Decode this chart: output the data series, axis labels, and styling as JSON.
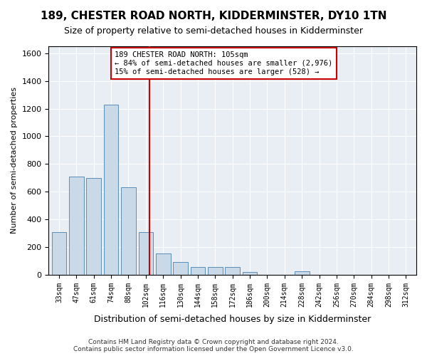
{
  "title": "189, CHESTER ROAD NORTH, KIDDERMINSTER, DY10 1TN",
  "subtitle": "Size of property relative to semi-detached houses in Kidderminster",
  "xlabel": "Distribution of semi-detached houses by size in Kidderminster",
  "ylabel": "Number of semi-detached properties",
  "bin_labels": [
    "33sqm",
    "47sqm",
    "61sqm",
    "74sqm",
    "88sqm",
    "102sqm",
    "116sqm",
    "130sqm",
    "144sqm",
    "158sqm",
    "172sqm",
    "186sqm",
    "200sqm",
    "214sqm",
    "228sqm",
    "242sqm",
    "256sqm",
    "270sqm",
    "284sqm",
    "298sqm",
    "312sqm"
  ],
  "bar_heights": [
    310,
    710,
    700,
    1230,
    630,
    310,
    155,
    90,
    55,
    55,
    55,
    20,
    0,
    0,
    25,
    0,
    0,
    0,
    0,
    0,
    0
  ],
  "bar_color": "#c9d9e8",
  "bar_edgecolor": "#5b8db8",
  "vline_x": 4.67,
  "vline_color": "#cc0000",
  "annotation_text": "189 CHESTER ROAD NORTH: 105sqm\n← 84% of semi-detached houses are smaller (2,976)\n15% of semi-detached houses are larger (528) →",
  "annotation_box_color": "#ffffff",
  "annotation_box_edgecolor": "#cc0000",
  "ylim": [
    0,
    1650
  ],
  "yticks": [
    0,
    200,
    400,
    600,
    800,
    1000,
    1200,
    1400,
    1600
  ],
  "background_color": "#e8eef4",
  "footer": "Contains HM Land Registry data © Crown copyright and database right 2024.\nContains public sector information licensed under the Open Government Licence v3.0."
}
